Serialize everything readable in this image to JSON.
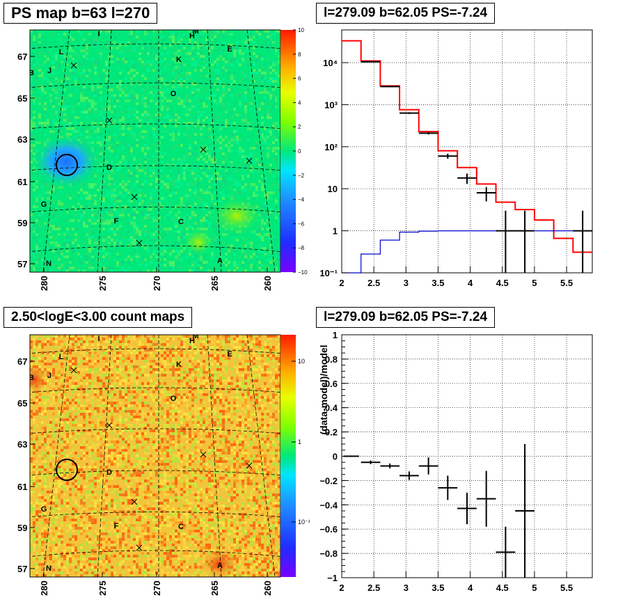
{
  "panels": {
    "ps_map": {
      "title": "PS map b=63 l=270",
      "colorbar_ticks": [
        "10",
        "8",
        "6",
        "4",
        "2",
        "0",
        "−2",
        "−4",
        "−6",
        "−8",
        "−10"
      ]
    },
    "count_map": {
      "title": "2.50<logE<3.00 count maps",
      "colorbar_ticks": [
        "10",
        "1",
        "10⁻¹"
      ]
    },
    "spectrum": {
      "title": "l=279.09 b=62.05 PS=-7.24"
    },
    "residual": {
      "title": "l=279.09 b=62.05 PS=-7.24"
    }
  },
  "sky_map": {
    "x_ticks": [
      "280",
      "275",
      "270",
      "265",
      "260"
    ],
    "y_ticks": [
      "67",
      "65",
      "63",
      "61",
      "59",
      "57"
    ],
    "labels": [
      "I",
      "M",
      "H",
      "E",
      "L",
      "K",
      "B",
      "J",
      "O",
      "D",
      "G",
      "F",
      "C",
      "A",
      "N"
    ]
  },
  "chart_data": [
    {
      "type": "heatmap",
      "title": "PS map b=63 l=270",
      "xlim": [
        281,
        259.5
      ],
      "ylim": [
        56.5,
        68
      ],
      "colorbar": {
        "min": -10,
        "max": 10
      },
      "circle": {
        "l": 279.09,
        "b": 62.05
      }
    },
    {
      "type": "heatmap",
      "title": "2.50<logE<3.00 count maps",
      "xlim": [
        281,
        259.5
      ],
      "ylim": [
        56.5,
        68
      ],
      "colorbar": {
        "scale": "log"
      },
      "circle": {
        "l": 279.09,
        "b": 62.05
      }
    },
    {
      "type": "line",
      "title": "l=279.09 b=62.05 PS=-7.24",
      "xlim": [
        2,
        5.9
      ],
      "ylim": [
        0.1,
        60000
      ],
      "yscale": "log",
      "grid": true,
      "x_ticks": [
        "2",
        "2.5",
        "3",
        "3.5",
        "4",
        "4.5",
        "5",
        "5.5"
      ],
      "y_ticks": [
        "10⁻¹",
        "1",
        "10",
        "10²",
        "10³",
        "10⁴"
      ],
      "series": [
        {
          "color": "#ff0000",
          "step": true,
          "x": [
            2.0,
            2.3,
            2.6,
            2.9,
            3.2,
            3.5,
            3.8,
            4.1,
            4.4,
            4.7,
            5.0,
            5.3,
            5.6,
            5.9
          ],
          "y": [
            33000,
            11000,
            2800,
            760,
            230,
            80,
            32,
            13,
            4.8,
            3.2,
            1.8,
            0.66,
            0.31,
            0.135
          ]
        },
        {
          "color": "#0000cc",
          "step": true,
          "x": [
            2.0,
            2.3,
            2.6,
            2.9,
            3.2,
            3.5,
            3.8,
            4.1,
            4.4,
            4.7,
            5.0,
            5.3,
            5.6,
            5.9
          ],
          "y": [
            0.1,
            0.28,
            0.6,
            0.93,
            0.98,
            1.0,
            1.0,
            1.0,
            1.0,
            1.0,
            1.0,
            1.0,
            1.0,
            1.0
          ]
        },
        {
          "color": "#000000",
          "errorbars": true,
          "points": [
            {
              "x": 2.45,
              "y": 10500,
              "xerr": 0.15,
              "ylo": 10300,
              "yhi": 10700
            },
            {
              "x": 2.75,
              "y": 2700,
              "xerr": 0.15,
              "ylo": 2600,
              "yhi": 2800
            },
            {
              "x": 3.05,
              "y": 630,
              "xerr": 0.15,
              "ylo": 600,
              "yhi": 660
            },
            {
              "x": 3.35,
              "y": 210,
              "xerr": 0.15,
              "ylo": 195,
              "yhi": 225
            },
            {
              "x": 3.65,
              "y": 60,
              "xerr": 0.15,
              "ylo": 52,
              "yhi": 68
            },
            {
              "x": 3.95,
              "y": 18,
              "xerr": 0.15,
              "ylo": 13,
              "yhi": 23
            },
            {
              "x": 4.25,
              "y": 8,
              "xerr": 0.15,
              "ylo": 5,
              "yhi": 11
            },
            {
              "x": 4.55,
              "y": 1,
              "xerr": 0.15,
              "ylo": 0.1,
              "yhi": 3
            },
            {
              "x": 4.85,
              "y": 1,
              "xerr": 0.15,
              "ylo": 0.1,
              "yhi": 3
            },
            {
              "x": 5.75,
              "y": 1,
              "xerr": 0.15,
              "ylo": 0.1,
              "yhi": 3
            }
          ]
        }
      ]
    },
    {
      "type": "scatter",
      "title": "l=279.09 b=62.05 PS=-7.24",
      "ylabel": "(data-model)/model",
      "xlim": [
        2,
        5.9
      ],
      "ylim": [
        -1,
        1
      ],
      "grid": true,
      "x_ticks": [
        "2",
        "2.5",
        "3",
        "3.5",
        "4",
        "4.5",
        "5",
        "5.5"
      ],
      "y_ticks": [
        "1",
        "0.8",
        "0.6",
        "0.4",
        "0.2",
        "0",
        "−0.2",
        "−0.4",
        "−0.6",
        "−0.8",
        "−1"
      ],
      "points": [
        {
          "x": 2.15,
          "y": 0.0,
          "xerr": 0.12,
          "yerr": 0.006
        },
        {
          "x": 2.45,
          "y": -0.05,
          "xerr": 0.15,
          "yerr": 0.015
        },
        {
          "x": 2.75,
          "y": -0.08,
          "xerr": 0.15,
          "yerr": 0.02
        },
        {
          "x": 3.05,
          "y": -0.16,
          "xerr": 0.15,
          "yerr": 0.035
        },
        {
          "x": 3.35,
          "y": -0.08,
          "xerr": 0.15,
          "yerr": 0.07
        },
        {
          "x": 3.65,
          "y": -0.26,
          "xerr": 0.15,
          "yerr": 0.1
        },
        {
          "x": 3.95,
          "y": -0.43,
          "xerr": 0.15,
          "yerr": 0.13
        },
        {
          "x": 4.25,
          "y": -0.35,
          "xerr": 0.15,
          "yerr": 0.23
        },
        {
          "x": 4.55,
          "y": -0.79,
          "xerr": 0.15,
          "yerr": 0.21
        },
        {
          "x": 4.85,
          "y": -0.45,
          "xerr": 0.15,
          "yerr": 0.55
        }
      ]
    }
  ]
}
